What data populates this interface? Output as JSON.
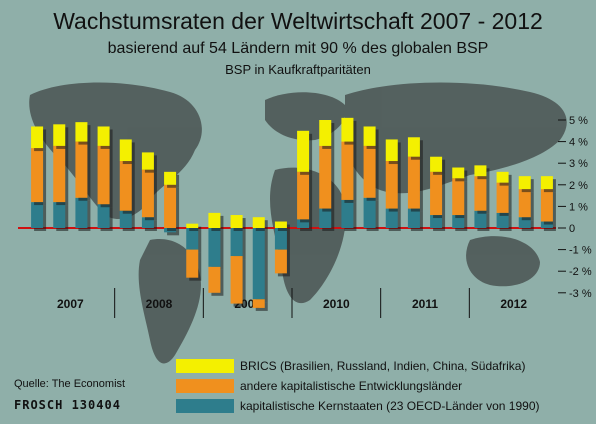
{
  "title": "Wachstumsraten der Weltwirtschaft 2007 - 2012",
  "subtitle": "basierend auf 54 Ländern mit 90 % des globalen BSP",
  "subtitle2": "BSP in Kaufkraftparitäten",
  "source": "Quelle: The Economist",
  "signature": "FROSCH 130404",
  "colors": {
    "brics": "#f4f000",
    "emerging": "#f0901e",
    "core": "#2e7d8c",
    "zero_line": "#d01010",
    "background": "#8fb0a9"
  },
  "chart_data": {
    "type": "bar",
    "ylim": [
      -3,
      5
    ],
    "yticks": [
      "-3 %",
      "-2 %",
      "-1 %",
      "0",
      "1 %",
      "2 %",
      "3 %",
      "4 %",
      "5 %"
    ],
    "grid": false,
    "legend_position": "bottom",
    "year_labels": [
      "2007",
      "2008",
      "2009",
      "2010",
      "2011",
      "2012"
    ],
    "quarters_per_year": 4,
    "series": [
      {
        "name": "kapitalistische Kernstaaten (23 OECD-Länder von 1990)",
        "values": [
          1.2,
          1.2,
          1.4,
          1.1,
          0.8,
          0.5,
          -0.2,
          -1.0,
          -1.8,
          -1.3,
          -3.3,
          -1.0,
          0.4,
          0.9,
          1.3,
          1.4,
          0.9,
          0.9,
          0.6,
          0.6,
          0.8,
          0.7,
          0.5,
          0.3
        ]
      },
      {
        "name": "andere kapitalistische Entwicklungsländer",
        "values": [
          2.5,
          2.6,
          2.6,
          2.7,
          2.3,
          2.2,
          2.0,
          -1.3,
          -1.2,
          -2.2,
          -0.4,
          -1.1,
          2.2,
          2.9,
          2.7,
          2.4,
          2.2,
          2.4,
          2.0,
          1.7,
          1.6,
          1.4,
          1.3,
          1.5
        ]
      },
      {
        "name": "BRICS (Brasilien, Russland, Indien, China, Südafrika)",
        "values": [
          1.0,
          1.0,
          0.9,
          0.9,
          1.0,
          0.8,
          0.6,
          0.2,
          0.7,
          0.6,
          0.5,
          0.3,
          1.9,
          1.2,
          1.1,
          0.9,
          1.0,
          0.9,
          0.7,
          0.5,
          0.5,
          0.5,
          0.6,
          0.6
        ]
      }
    ]
  }
}
